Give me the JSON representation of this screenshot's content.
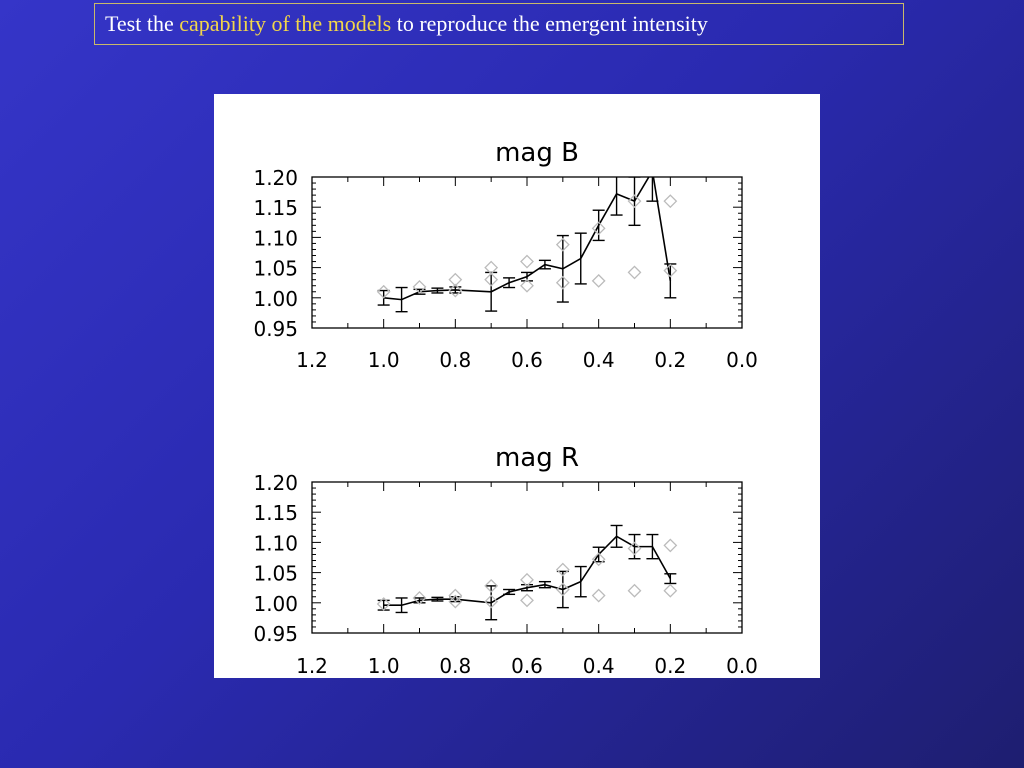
{
  "slide": {
    "title_prefix": "Test the",
    "title_highlight": "capability of the models",
    "title_suffix": "to reproduce the emergent intensity"
  },
  "colors": {
    "highlight": "#f2d64a",
    "model_line": "#000000",
    "observed_markers": "#bbbbbb"
  },
  "chart_data": [
    {
      "type": "line",
      "title": "mag   B",
      "xlim": [
        1.2,
        0.0
      ],
      "ylim": [
        0.95,
        1.2
      ],
      "x_ticks": [
        "1.2",
        "1.0",
        "0.8",
        "0.6",
        "0.4",
        "0.2",
        "0.0"
      ],
      "y_ticks": [
        "0.95",
        "1.00",
        "1.05",
        "1.10",
        "1.15",
        "1.20"
      ],
      "series": [
        {
          "style": "line-with-errorbars",
          "x": [
            1.0,
            0.95,
            0.9,
            0.85,
            0.8,
            0.7,
            0.65,
            0.6,
            0.55,
            0.5,
            0.45,
            0.4,
            0.35,
            0.3,
            0.25,
            0.2
          ],
          "y": [
            1.0,
            0.997,
            1.01,
            1.012,
            1.013,
            1.01,
            1.025,
            1.035,
            1.055,
            1.048,
            1.065,
            1.12,
            1.172,
            1.16,
            1.21,
            1.028
          ],
          "err": [
            0.012,
            0.02,
            0.004,
            0.004,
            0.005,
            0.032,
            0.008,
            0.007,
            0.007,
            0.055,
            0.042,
            0.025,
            0.035,
            0.04,
            0.05,
            0.028
          ]
        },
        {
          "style": "diamond",
          "x": [
            1.0,
            0.9,
            0.8,
            0.8,
            0.7,
            0.7,
            0.6,
            0.6,
            0.5,
            0.5,
            0.4,
            0.4,
            0.3,
            0.3,
            0.2,
            0.2
          ],
          "y": [
            1.01,
            1.018,
            1.03,
            1.012,
            1.05,
            1.03,
            1.06,
            1.02,
            1.088,
            1.025,
            1.115,
            1.028,
            1.16,
            1.042,
            1.16,
            1.045
          ]
        }
      ]
    },
    {
      "type": "line",
      "title": "mag   R",
      "xlim": [
        1.2,
        0.0
      ],
      "ylim": [
        0.95,
        1.2
      ],
      "x_ticks": [
        "1.2",
        "1.0",
        "0.8",
        "0.6",
        "0.4",
        "0.2",
        "0.0"
      ],
      "y_ticks": [
        "0.95",
        "1.00",
        "1.05",
        "1.10",
        "1.15",
        "1.20"
      ],
      "series": [
        {
          "style": "line-with-errorbars",
          "x": [
            1.0,
            0.95,
            0.9,
            0.85,
            0.8,
            0.7,
            0.65,
            0.6,
            0.55,
            0.5,
            0.45,
            0.4,
            0.35,
            0.3,
            0.25,
            0.2
          ],
          "y": [
            0.996,
            0.996,
            1.004,
            1.006,
            1.006,
            1.0,
            1.018,
            1.025,
            1.03,
            1.022,
            1.035,
            1.08,
            1.11,
            1.093,
            1.093,
            1.04
          ],
          "err": [
            0.008,
            0.012,
            0.004,
            0.003,
            0.004,
            0.028,
            0.004,
            0.005,
            0.005,
            0.03,
            0.025,
            0.012,
            0.018,
            0.02,
            0.02,
            0.008
          ]
        },
        {
          "style": "diamond",
          "x": [
            1.0,
            0.9,
            0.8,
            0.8,
            0.7,
            0.7,
            0.6,
            0.6,
            0.5,
            0.5,
            0.4,
            0.4,
            0.3,
            0.3,
            0.2,
            0.2
          ],
          "y": [
            0.998,
            1.008,
            1.012,
            1.002,
            1.028,
            1.002,
            1.038,
            1.004,
            1.055,
            1.022,
            1.072,
            1.012,
            1.09,
            1.02,
            1.095,
            1.02
          ]
        }
      ]
    }
  ]
}
